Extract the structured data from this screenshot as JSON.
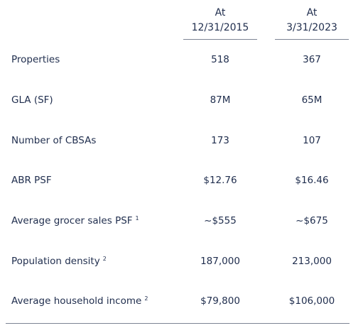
{
  "columns": [
    {
      "line1": "At",
      "line2": "12/31/2015"
    },
    {
      "line1": "At",
      "line2": "3/31/2023"
    }
  ],
  "rows": [
    {
      "label": "Properties",
      "note": "",
      "values": [
        "518",
        "367"
      ]
    },
    {
      "label": "GLA (SF)",
      "note": "",
      "values": [
        "87M",
        "65M"
      ]
    },
    {
      "label": "Number of CBSAs",
      "note": "",
      "values": [
        "173",
        "107"
      ]
    },
    {
      "label": "ABR PSF",
      "note": "",
      "values": [
        "$12.76",
        "$16.46"
      ]
    },
    {
      "label": "Average grocer sales PSF",
      "note": "1",
      "values": [
        "~$555",
        "~$675"
      ]
    },
    {
      "label": "Population density",
      "note": "2",
      "values": [
        "187,000",
        "213,000"
      ]
    },
    {
      "label": "Average household income",
      "note": "2",
      "values": [
        "$79,800",
        "$106,000"
      ]
    }
  ]
}
